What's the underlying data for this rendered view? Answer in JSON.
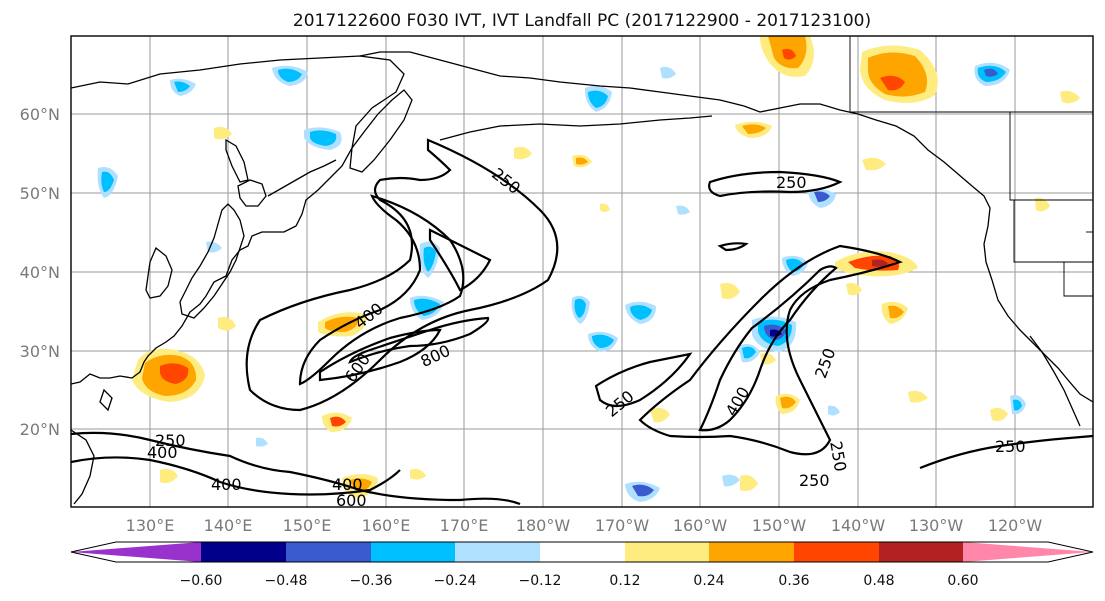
{
  "title": "2017122600 F030 IVT, IVT Landfall PC (2017122900 - 2017123100)",
  "lat_ticks": [
    "60°N",
    "50°N",
    "40°N",
    "30°N",
    "20°N"
  ],
  "lon_ticks": [
    "130°E",
    "140°E",
    "150°E",
    "160°E",
    "170°E",
    "180°W",
    "170°W",
    "160°W",
    "150°W",
    "140°W",
    "130°W",
    "120°W"
  ],
  "contour_labels": [
    "250",
    "250",
    "250",
    "250",
    "250",
    "250",
    "250",
    "400",
    "400",
    "400",
    "400",
    "600",
    "600",
    "800",
    "250",
    "400",
    "250",
    "400"
  ],
  "colorbar": {
    "ticks": [
      "−0.60",
      "−0.48",
      "−0.36",
      "−0.24",
      "−0.12",
      "0.12",
      "0.24",
      "0.36",
      "0.48",
      "0.60"
    ],
    "colors": [
      "#9932cc",
      "#00008b",
      "#3a5bd0",
      "#00bfff",
      "#b0e0ff",
      "#ffffff",
      "#ffec80",
      "#ffa500",
      "#ff4500",
      "#b22222",
      "#ff88aa"
    ]
  },
  "colors": {
    "neg_strong": "#3a5bd0",
    "neg": "#00bfff",
    "neg_light": "#b0e0ff",
    "pos_light": "#ffec80",
    "pos": "#ffa500",
    "pos_strong": "#ff4500"
  }
}
